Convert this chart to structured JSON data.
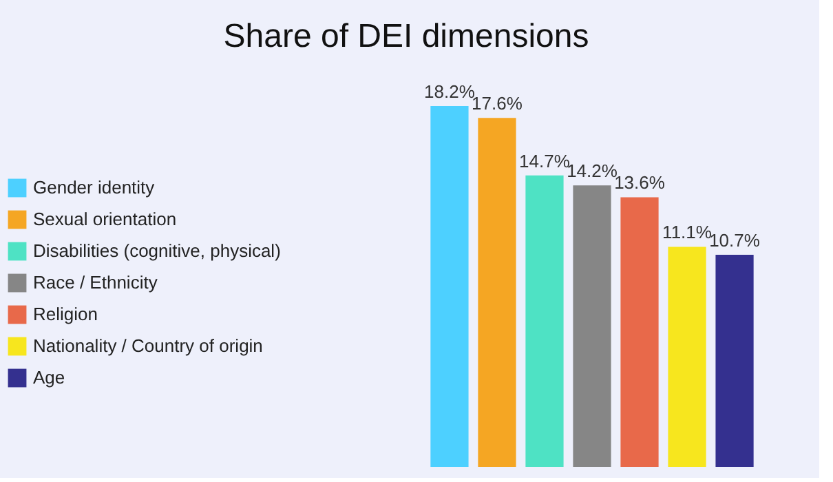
{
  "chart_data": {
    "type": "bar",
    "title": "Share of DEI dimensions",
    "categories": [
      null
    ],
    "series": [
      {
        "name": "Gender identity",
        "color": "#4dd0ff",
        "values": [
          18.2
        ],
        "value_labels": [
          "18.2%"
        ]
      },
      {
        "name": "Sexual orientation",
        "color": "#f5a623",
        "values": [
          17.6
        ],
        "value_labels": [
          "17.6%"
        ]
      },
      {
        "name": "Disabilities (cognitive, physical)",
        "color": "#4ee2c4",
        "values": [
          14.7
        ],
        "value_labels": [
          "14.7%"
        ]
      },
      {
        "name": "Race / Ethnicity",
        "color": "#868686",
        "values": [
          14.2
        ],
        "value_labels": [
          "14.2%"
        ]
      },
      {
        "name": "Religion",
        "color": "#e8694a",
        "values": [
          13.6
        ],
        "value_labels": [
          "13.6%"
        ]
      },
      {
        "name": "Nationality / Country of origin",
        "color": "#f7e61e",
        "values": [
          11.1
        ],
        "value_labels": [
          "11.1%"
        ]
      },
      {
        "name": "Age",
        "color": "#34308f",
        "values": [
          10.7
        ],
        "value_labels": [
          "10.7%"
        ]
      }
    ],
    "legend": "left",
    "tick_labels": false,
    "grid": false
  }
}
